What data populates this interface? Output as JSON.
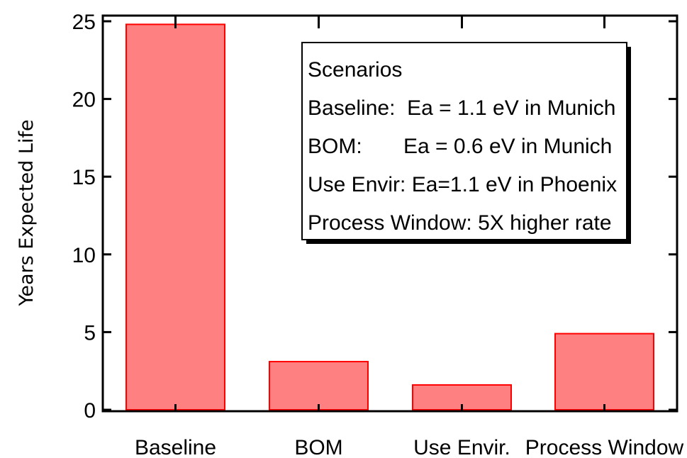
{
  "chart_data": {
    "type": "bar",
    "title": "",
    "xlabel": "",
    "ylabel": "Years Expected Life",
    "categories": [
      "Baseline",
      "BOM",
      "Use Envir.",
      "Process Window"
    ],
    "values": [
      24.8,
      3.1,
      1.6,
      4.9
    ],
    "ylim": [
      0,
      25
    ],
    "yticks": [
      0,
      5,
      10,
      15,
      20,
      25
    ],
    "grid": false,
    "bar_color": "#ff8080",
    "bar_edge_color": "#ff0000",
    "legend": {
      "placement": "top-right",
      "lines": [
        "Scenarios",
        "Baseline:  Ea = 1.1 eV in Munich",
        "BOM:       Ea = 0.6 eV in Munich",
        "Use Envir: Ea=1.1 eV in Phoenix",
        "Process Window: 5X higher rate"
      ]
    }
  }
}
